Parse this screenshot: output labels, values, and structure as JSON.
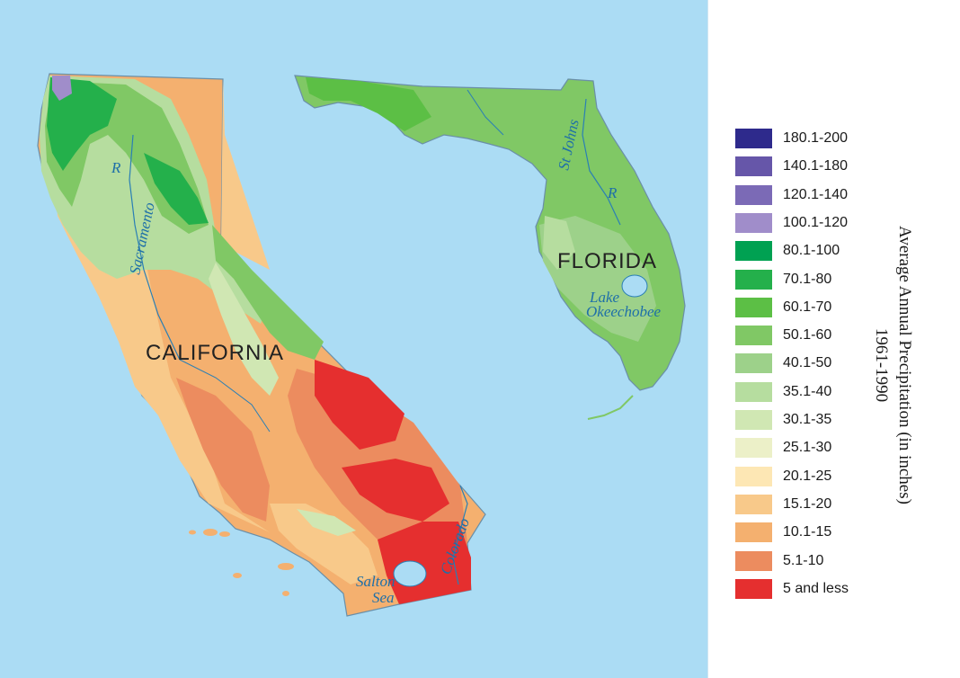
{
  "map": {
    "title_line1": "Average Annual Precipitation (in inches)",
    "title_line2": "1961-1990",
    "states": {
      "california": "CALIFORNIA",
      "florida": "FLORIDA"
    },
    "water_labels": {
      "sacramento": "Sacramento",
      "sacramento_r": "R",
      "st_johns": "St Johns",
      "st_johns_r": "R",
      "lake_okeechobee_line1": "Lake",
      "lake_okeechobee_line2": "Okeechobee",
      "salton_sea_line1": "Salton",
      "salton_sea_line2": "Sea",
      "colorado": "Colorado"
    },
    "colors": {
      "ocean": "#abdcf4",
      "lake": "#abdcf4",
      "river": "#2a7fb5"
    }
  },
  "legend": [
    {
      "label": "180.1-200",
      "color": "#2e2a8c"
    },
    {
      "label": "140.1-180",
      "color": "#6656a9"
    },
    {
      "label": "120.1-140",
      "color": "#7b6ab6"
    },
    {
      "label": "100.1-120",
      "color": "#a08dca"
    },
    {
      "label": "80.1-100",
      "color": "#00a152"
    },
    {
      "label": "70.1-80",
      "color": "#24b04b"
    },
    {
      "label": "60.1-70",
      "color": "#5cbf45"
    },
    {
      "label": "50.1-60",
      "color": "#80c865"
    },
    {
      "label": "40.1-50",
      "color": "#9dd18a"
    },
    {
      "label": "35.1-40",
      "color": "#b6dd9f"
    },
    {
      "label": "30.1-35",
      "color": "#d0e7b3"
    },
    {
      "label": "25.1-30",
      "color": "#ecf0c8"
    },
    {
      "label": "20.1-25",
      "color": "#fde7b4"
    },
    {
      "label": "15.1-20",
      "color": "#f8c98a"
    },
    {
      "label": "10.1-15",
      "color": "#f4b06f"
    },
    {
      "label": "5.1-10",
      "color": "#ec8c5f"
    },
    {
      "label": "5 and less",
      "color": "#e52f2f"
    }
  ]
}
